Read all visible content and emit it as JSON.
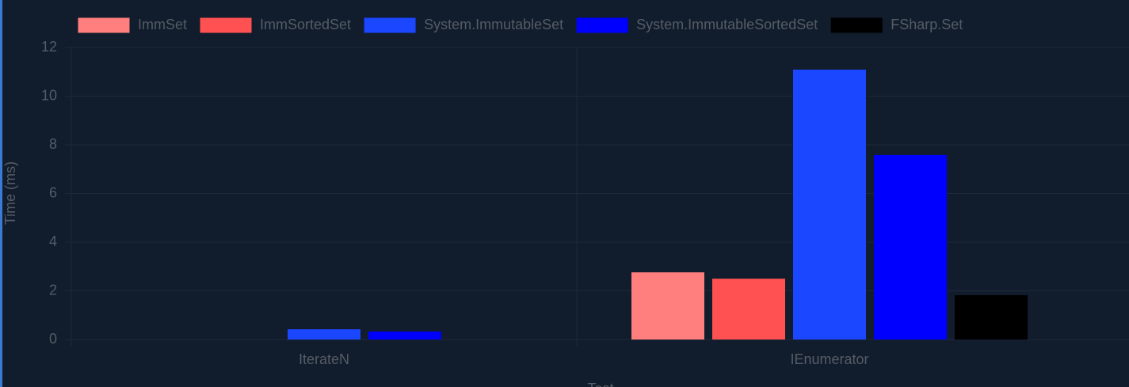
{
  "chart_data": {
    "type": "bar",
    "x_label": "Test",
    "y_label": "Time (ms)",
    "categories": [
      "IterateN",
      "IEnumerator"
    ],
    "series": [
      {
        "name": "ImmSet",
        "color": "#ff7f7f",
        "values": [
          0,
          2.76
        ]
      },
      {
        "name": "ImmSortedSet",
        "color": "#ff5151",
        "values": [
          0,
          2.5
        ]
      },
      {
        "name": "System.ImmutableSet",
        "color": "#1a47ff",
        "values": [
          0.42,
          11.09
        ]
      },
      {
        "name": "System.ImmutableSortedSet",
        "color": "#0000ff",
        "values": [
          0.33,
          7.58
        ]
      },
      {
        "name": "FSharp.Set",
        "color": "#000000",
        "values": [
          0,
          1.82
        ]
      }
    ],
    "ylim": [
      0,
      12
    ],
    "yticks": [
      0,
      2,
      4,
      6,
      8,
      10,
      12
    ],
    "grid": true,
    "legend": "top"
  }
}
